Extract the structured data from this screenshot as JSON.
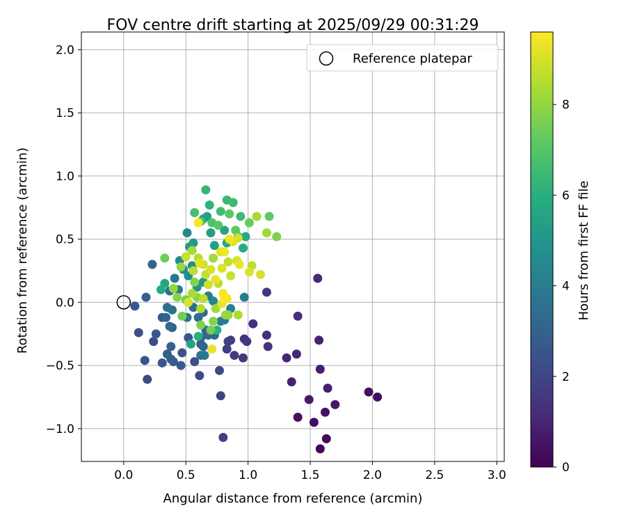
{
  "chart_data": {
    "type": "scatter",
    "title": "FOV centre drift starting at 2025/09/29 00:31:29",
    "xlabel": "Angular distance from reference (arcmin)",
    "ylabel": "Rotation from reference (arcmin)",
    "xlim": [
      -0.34,
      3.06
    ],
    "ylim": [
      -1.26,
      2.14
    ],
    "xticks": [
      "0.0",
      "0.5",
      "1.0",
      "1.5",
      "2.0",
      "2.5",
      "3.0"
    ],
    "yticks": [
      "−1.0",
      "−0.5",
      "0.0",
      "0.5",
      "1.0",
      "1.5",
      "2.0"
    ],
    "grid": true,
    "legend": {
      "position": "top-right",
      "entries": [
        "Reference platepar"
      ]
    },
    "reference_point": {
      "x": 0.0,
      "y": 0.0
    },
    "colorbar": {
      "label": "Hours from first FF file",
      "range": [
        0,
        9.6
      ],
      "ticks": [
        "0",
        "2",
        "4",
        "6",
        "8"
      ],
      "colormap": "viridis"
    },
    "points": [
      {
        "x": 1.58,
        "y": -1.16,
        "h": 0.1
      },
      {
        "x": 1.63,
        "y": -1.08,
        "h": 0.2
      },
      {
        "x": 1.53,
        "y": -0.95,
        "h": 0.3
      },
      {
        "x": 1.4,
        "y": -0.91,
        "h": 0.4
      },
      {
        "x": 1.62,
        "y": -0.87,
        "h": 0.5
      },
      {
        "x": 1.7,
        "y": -0.81,
        "h": 0.6
      },
      {
        "x": 1.49,
        "y": -0.77,
        "h": 0.7
      },
      {
        "x": 2.04,
        "y": -0.75,
        "h": 0.3
      },
      {
        "x": 1.97,
        "y": -0.71,
        "h": 0.4
      },
      {
        "x": 1.64,
        "y": -0.68,
        "h": 0.8
      },
      {
        "x": 1.35,
        "y": -0.63,
        "h": 0.9
      },
      {
        "x": 1.58,
        "y": -0.53,
        "h": 0.8
      },
      {
        "x": 1.31,
        "y": -0.44,
        "h": 1.0
      },
      {
        "x": 1.39,
        "y": -0.41,
        "h": 1.0
      },
      {
        "x": 1.57,
        "y": -0.3,
        "h": 0.9
      },
      {
        "x": 1.56,
        "y": 0.19,
        "h": 1.1
      },
      {
        "x": 1.4,
        "y": -0.11,
        "h": 1.2
      },
      {
        "x": 1.15,
        "y": -0.26,
        "h": 1.3
      },
      {
        "x": 1.16,
        "y": -0.35,
        "h": 1.4
      },
      {
        "x": 1.04,
        "y": -0.17,
        "h": 1.3
      },
      {
        "x": 1.15,
        "y": 0.08,
        "h": 1.6
      },
      {
        "x": 0.96,
        "y": -0.44,
        "h": 1.5
      },
      {
        "x": 0.97,
        "y": -0.29,
        "h": 1.4
      },
      {
        "x": 0.99,
        "y": -0.31,
        "h": 1.5
      },
      {
        "x": 0.89,
        "y": -0.42,
        "h": 1.6
      },
      {
        "x": 0.86,
        "y": -0.3,
        "h": 1.7
      },
      {
        "x": 0.84,
        "y": -0.31,
        "h": 1.8
      },
      {
        "x": 0.83,
        "y": -0.37,
        "h": 1.7
      },
      {
        "x": 0.8,
        "y": -1.07,
        "h": 1.8
      },
      {
        "x": 0.78,
        "y": -0.74,
        "h": 1.9
      },
      {
        "x": 0.77,
        "y": -0.54,
        "h": 2.0
      },
      {
        "x": 0.61,
        "y": -0.58,
        "h": 2.2
      },
      {
        "x": 0.57,
        "y": -0.47,
        "h": 2.3
      },
      {
        "x": 0.19,
        "y": -0.61,
        "h": 2.1
      },
      {
        "x": 0.17,
        "y": -0.46,
        "h": 2.4
      },
      {
        "x": 0.31,
        "y": -0.48,
        "h": 2.5
      },
      {
        "x": 0.46,
        "y": -0.5,
        "h": 2.6
      },
      {
        "x": 0.4,
        "y": -0.47,
        "h": 2.7
      },
      {
        "x": 0.38,
        "y": -0.45,
        "h": 2.8
      },
      {
        "x": 0.35,
        "y": -0.41,
        "h": 2.9
      },
      {
        "x": 0.47,
        "y": -0.4,
        "h": 2.5
      },
      {
        "x": 0.38,
        "y": -0.35,
        "h": 3.0
      },
      {
        "x": 0.24,
        "y": -0.31,
        "h": 2.2
      },
      {
        "x": 0.26,
        "y": -0.25,
        "h": 2.5
      },
      {
        "x": 0.12,
        "y": -0.24,
        "h": 2.3
      },
      {
        "x": 0.09,
        "y": -0.03,
        "h": 2.6
      },
      {
        "x": 0.18,
        "y": 0.04,
        "h": 2.8
      },
      {
        "x": 0.23,
        "y": 0.3,
        "h": 3.0
      },
      {
        "x": 0.31,
        "y": -0.12,
        "h": 2.7
      },
      {
        "x": 0.34,
        "y": -0.12,
        "h": 3.1
      },
      {
        "x": 0.37,
        "y": -0.19,
        "h": 3.3
      },
      {
        "x": 0.39,
        "y": -0.2,
        "h": 2.9
      },
      {
        "x": 0.35,
        "y": -0.04,
        "h": 3.4
      },
      {
        "x": 0.39,
        "y": -0.06,
        "h": 3.6
      },
      {
        "x": 0.37,
        "y": 0.09,
        "h": 3.5
      },
      {
        "x": 0.41,
        "y": 0.19,
        "h": 3.7
      },
      {
        "x": 0.44,
        "y": 0.1,
        "h": 3.9
      },
      {
        "x": 0.52,
        "y": -0.28,
        "h": 2.6
      },
      {
        "x": 0.51,
        "y": -0.12,
        "h": 3.8
      },
      {
        "x": 0.62,
        "y": -0.28,
        "h": 2.8
      },
      {
        "x": 0.62,
        "y": -0.33,
        "h": 2.9
      },
      {
        "x": 0.64,
        "y": -0.35,
        "h": 3.1
      },
      {
        "x": 0.62,
        "y": -0.42,
        "h": 3.8
      },
      {
        "x": 0.65,
        "y": -0.42,
        "h": 3.9
      },
      {
        "x": 0.66,
        "y": -0.22,
        "h": 3.0
      },
      {
        "x": 0.68,
        "y": -0.26,
        "h": 3.2
      },
      {
        "x": 0.73,
        "y": -0.26,
        "h": 3.3
      },
      {
        "x": 0.6,
        "y": -0.12,
        "h": 3.4
      },
      {
        "x": 0.64,
        "y": -0.08,
        "h": 3.5
      },
      {
        "x": 0.56,
        "y": -0.04,
        "h": 3.6
      },
      {
        "x": 0.68,
        "y": 0.05,
        "h": 4.0
      },
      {
        "x": 0.78,
        "y": -0.15,
        "h": 3.9
      },
      {
        "x": 0.81,
        "y": -0.14,
        "h": 4.1
      },
      {
        "x": 0.86,
        "y": -0.05,
        "h": 4.2
      },
      {
        "x": 0.72,
        "y": 0.01,
        "h": 4.3
      },
      {
        "x": 0.97,
        "y": 0.04,
        "h": 4.0
      },
      {
        "x": 0.51,
        "y": 0.55,
        "h": 4.4
      },
      {
        "x": 0.45,
        "y": 0.33,
        "h": 4.5
      },
      {
        "x": 0.48,
        "y": 0.26,
        "h": 4.6
      },
      {
        "x": 0.52,
        "y": 0.21,
        "h": 4.7
      },
      {
        "x": 0.55,
        "y": 0.29,
        "h": 4.8
      },
      {
        "x": 0.59,
        "y": 0.12,
        "h": 4.9
      },
      {
        "x": 0.64,
        "y": 0.16,
        "h": 5.0
      },
      {
        "x": 0.53,
        "y": 0.44,
        "h": 5.1
      },
      {
        "x": 0.56,
        "y": 0.47,
        "h": 5.2
      },
      {
        "x": 0.64,
        "y": 0.66,
        "h": 4.9
      },
      {
        "x": 0.7,
        "y": 0.55,
        "h": 5.3
      },
      {
        "x": 0.73,
        "y": 0.45,
        "h": 5.4
      },
      {
        "x": 0.67,
        "y": 0.68,
        "h": 5.5
      },
      {
        "x": 0.81,
        "y": 0.57,
        "h": 5.6
      },
      {
        "x": 0.83,
        "y": 0.47,
        "h": 5.7
      },
      {
        "x": 0.98,
        "y": 0.52,
        "h": 5.8
      },
      {
        "x": 0.96,
        "y": 0.43,
        "h": 5.9
      },
      {
        "x": 0.92,
        "y": 0.52,
        "h": 6.0
      },
      {
        "x": 0.33,
        "y": 0.15,
        "h": 5.7
      },
      {
        "x": 0.3,
        "y": 0.1,
        "h": 5.9
      },
      {
        "x": 0.54,
        "y": -0.33,
        "h": 5.5
      },
      {
        "x": 0.6,
        "y": -0.27,
        "h": 6.0
      },
      {
        "x": 0.75,
        "y": -0.22,
        "h": 6.1
      },
      {
        "x": 0.66,
        "y": 0.89,
        "h": 6.3
      },
      {
        "x": 0.69,
        "y": 0.77,
        "h": 6.2
      },
      {
        "x": 0.83,
        "y": 0.81,
        "h": 6.4
      },
      {
        "x": 0.88,
        "y": 0.79,
        "h": 6.5
      },
      {
        "x": 0.78,
        "y": 0.72,
        "h": 6.6
      },
      {
        "x": 0.94,
        "y": 0.68,
        "h": 6.5
      },
      {
        "x": 0.57,
        "y": 0.71,
        "h": 6.7
      },
      {
        "x": 0.62,
        "y": 0.64,
        "h": 6.8
      },
      {
        "x": 0.71,
        "y": 0.63,
        "h": 6.9
      },
      {
        "x": 0.76,
        "y": 0.61,
        "h": 7.0
      },
      {
        "x": 0.85,
        "y": 0.7,
        "h": 7.1
      },
      {
        "x": 0.9,
        "y": 0.57,
        "h": 7.2
      },
      {
        "x": 1.01,
        "y": 0.63,
        "h": 7.3
      },
      {
        "x": 1.17,
        "y": 0.68,
        "h": 7.2
      },
      {
        "x": 1.23,
        "y": 0.52,
        "h": 7.7
      },
      {
        "x": 1.15,
        "y": 0.55,
        "h": 8.2
      },
      {
        "x": 1.07,
        "y": 0.68,
        "h": 8.3
      },
      {
        "x": 0.33,
        "y": 0.35,
        "h": 7.4
      },
      {
        "x": 0.47,
        "y": -0.11,
        "h": 7.5
      },
      {
        "x": 0.5,
        "y": 0.02,
        "h": 7.6
      },
      {
        "x": 0.43,
        "y": 0.04,
        "h": 7.8
      },
      {
        "x": 0.4,
        "y": 0.11,
        "h": 8.0
      },
      {
        "x": 0.59,
        "y": 0.04,
        "h": 7.9
      },
      {
        "x": 0.62,
        "y": -0.18,
        "h": 7.7
      },
      {
        "x": 0.7,
        "y": -0.22,
        "h": 7.5
      },
      {
        "x": 0.72,
        "y": -0.15,
        "h": 7.8
      },
      {
        "x": 0.84,
        "y": -0.1,
        "h": 8.0
      },
      {
        "x": 0.82,
        "y": -0.1,
        "h": 8.1
      },
      {
        "x": 0.92,
        "y": -0.1,
        "h": 8.4
      },
      {
        "x": 0.74,
        "y": -0.05,
        "h": 8.2
      },
      {
        "x": 0.62,
        "y": -0.05,
        "h": 8.5
      },
      {
        "x": 0.64,
        "y": 0.03,
        "h": 8.6
      },
      {
        "x": 0.55,
        "y": 0.07,
        "h": 8.4
      },
      {
        "x": 0.52,
        "y": 0.0,
        "h": 9.1
      },
      {
        "x": 0.56,
        "y": 0.25,
        "h": 8.6
      },
      {
        "x": 0.5,
        "y": 0.36,
        "h": 8.8
      },
      {
        "x": 0.55,
        "y": 0.41,
        "h": 8.3
      },
      {
        "x": 0.6,
        "y": 0.35,
        "h": 8.5
      },
      {
        "x": 0.64,
        "y": 0.3,
        "h": 8.9
      },
      {
        "x": 0.61,
        "y": 0.31,
        "h": 9.2
      },
      {
        "x": 0.66,
        "y": 0.22,
        "h": 8.7
      },
      {
        "x": 0.68,
        "y": 0.14,
        "h": 8.9
      },
      {
        "x": 0.7,
        "y": 0.26,
        "h": 9.0
      },
      {
        "x": 0.74,
        "y": 0.18,
        "h": 9.3
      },
      {
        "x": 0.76,
        "y": 0.15,
        "h": 8.6
      },
      {
        "x": 0.79,
        "y": 0.27,
        "h": 9.1
      },
      {
        "x": 0.78,
        "y": 0.4,
        "h": 9.2
      },
      {
        "x": 0.81,
        "y": 0.4,
        "h": 9.4
      },
      {
        "x": 0.84,
        "y": 0.32,
        "h": 8.7
      },
      {
        "x": 0.86,
        "y": 0.21,
        "h": 8.8
      },
      {
        "x": 0.8,
        "y": 0.07,
        "h": 9.5
      },
      {
        "x": 0.81,
        "y": 0.03,
        "h": 9.6
      },
      {
        "x": 0.79,
        "y": -0.01,
        "h": 9.3
      },
      {
        "x": 0.83,
        "y": 0.03,
        "h": 9.4
      },
      {
        "x": 0.91,
        "y": 0.33,
        "h": 9.0
      },
      {
        "x": 0.93,
        "y": 0.3,
        "h": 9.3
      },
      {
        "x": 0.88,
        "y": 0.48,
        "h": 9.2
      },
      {
        "x": 0.92,
        "y": 0.51,
        "h": 8.9
      },
      {
        "x": 1.01,
        "y": 0.24,
        "h": 9.1
      },
      {
        "x": 1.03,
        "y": 0.29,
        "h": 8.6
      },
      {
        "x": 1.1,
        "y": 0.22,
        "h": 9.0
      },
      {
        "x": 0.85,
        "y": 0.5,
        "h": 9.4
      },
      {
        "x": 0.71,
        "y": -0.37,
        "h": 9.3
      },
      {
        "x": 0.6,
        "y": 0.63,
        "h": 9.5
      },
      {
        "x": 0.72,
        "y": 0.35,
        "h": 8.2
      },
      {
        "x": 0.46,
        "y": 0.28,
        "h": 8.0
      },
      {
        "x": 0.57,
        "y": 0.16,
        "h": 7.8
      }
    ]
  }
}
